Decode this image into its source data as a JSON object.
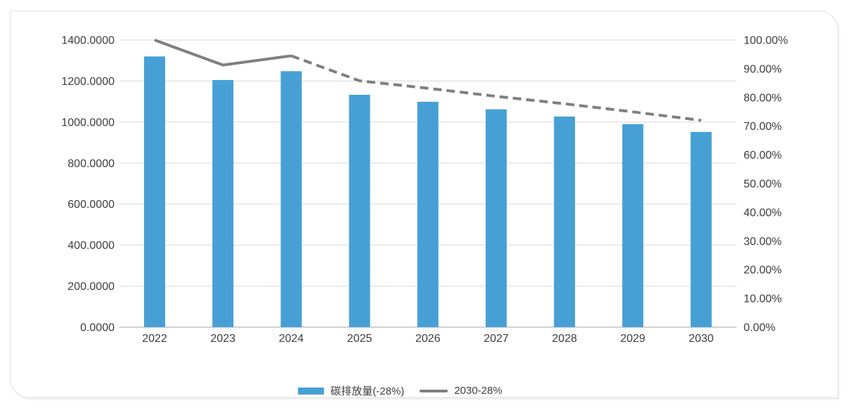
{
  "chart_data": {
    "type": "combo-bar-line",
    "title": "",
    "categories": [
      "2022",
      "2023",
      "2024",
      "2025",
      "2026",
      "2027",
      "2028",
      "2029",
      "2030"
    ],
    "series": [
      {
        "name": "碳排放量(-28%)",
        "type": "bar",
        "axis": "left",
        "color": "#47a0d5",
        "values": [
          1320,
          1205,
          1248,
          1133,
          1099,
          1062,
          1027,
          990,
          952
        ]
      },
      {
        "name": "2030-28%",
        "type": "line",
        "axis": "right",
        "color": "#7f7f7f",
        "solid_points": 3,
        "dashed_from_category": "2024",
        "values_percent": [
          100.0,
          91.3,
          94.5,
          85.8,
          83.2,
          80.4,
          77.8,
          75.0,
          72.0
        ]
      }
    ],
    "left_axis": {
      "min": 0,
      "max": 1400,
      "step": 200,
      "tick_labels": [
        "0.0000",
        "200.0000",
        "400.0000",
        "600.0000",
        "800.0000",
        "1000.0000",
        "1200.0000",
        "1400.0000"
      ]
    },
    "right_axis": {
      "min_label": "0.00%",
      "max_label": "100.00%",
      "tick_labels": [
        "0.00%",
        "10.00%",
        "20.00%",
        "30.00%",
        "40.00%",
        "50.00%",
        "60.00%",
        "70.00%",
        "80.00%",
        "90.00%",
        "100.00%"
      ]
    },
    "grid": true,
    "legend_position": "bottom"
  },
  "colors": {
    "bar": "#47a0d5",
    "line": "#7f7f7f",
    "grid": "#d9d9d9",
    "axis_line": "#c3c3c3",
    "text": "#3d3d3d",
    "card_border": "#e0e0e0",
    "background": "#ffffff"
  }
}
